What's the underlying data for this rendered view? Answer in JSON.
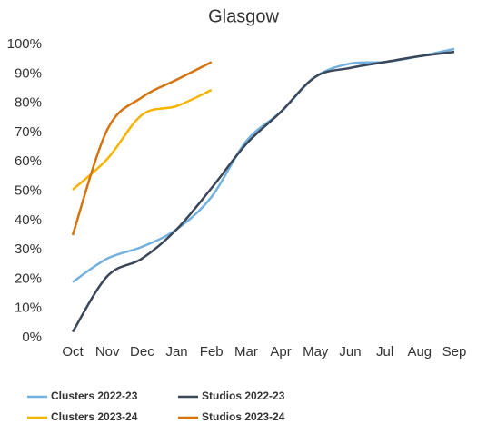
{
  "chart_data": {
    "type": "line",
    "title": "Glasgow",
    "categories": [
      "Oct",
      "Nov",
      "Dec",
      "Jan",
      "Feb",
      "Mar",
      "Apr",
      "May",
      "Jun",
      "Jul",
      "Aug",
      "Sep"
    ],
    "ylim": [
      0,
      100
    ],
    "yticks": [
      {
        "value": 0,
        "label": "0%"
      },
      {
        "value": 10,
        "label": "10%"
      },
      {
        "value": 20,
        "label": "20%"
      },
      {
        "value": 30,
        "label": "30%"
      },
      {
        "value": 40,
        "label": "40%"
      },
      {
        "value": 50,
        "label": "50%"
      },
      {
        "value": 60,
        "label": "60%"
      },
      {
        "value": 70,
        "label": "70%"
      },
      {
        "value": 80,
        "label": "80%"
      },
      {
        "value": 90,
        "label": "90%"
      },
      {
        "value": 100,
        "label": "100%"
      }
    ],
    "grid": false,
    "legend": "bottom",
    "series": [
      {
        "name": "Clusters 2022-23",
        "color": "#74b1de",
        "values": [
          19,
          27,
          31,
          37,
          48,
          67,
          77,
          89,
          93.5,
          94,
          96,
          98.5
        ]
      },
      {
        "name": "Studios 2022-23",
        "color": "#3b4759",
        "values": [
          2,
          21,
          27,
          37,
          51,
          66,
          77,
          89,
          92,
          94,
          96,
          97.5
        ]
      },
      {
        "name": "Clusters 2023-24",
        "color": "#f4b400",
        "values": [
          50.5,
          61,
          76,
          79,
          84.5,
          null,
          null,
          null,
          null,
          null,
          null,
          null
        ]
      },
      {
        "name": "Studios 2023-24",
        "color": "#d5730f",
        "values": [
          35,
          71,
          82,
          88,
          94,
          null,
          null,
          null,
          null,
          null,
          null,
          null
        ]
      }
    ]
  }
}
